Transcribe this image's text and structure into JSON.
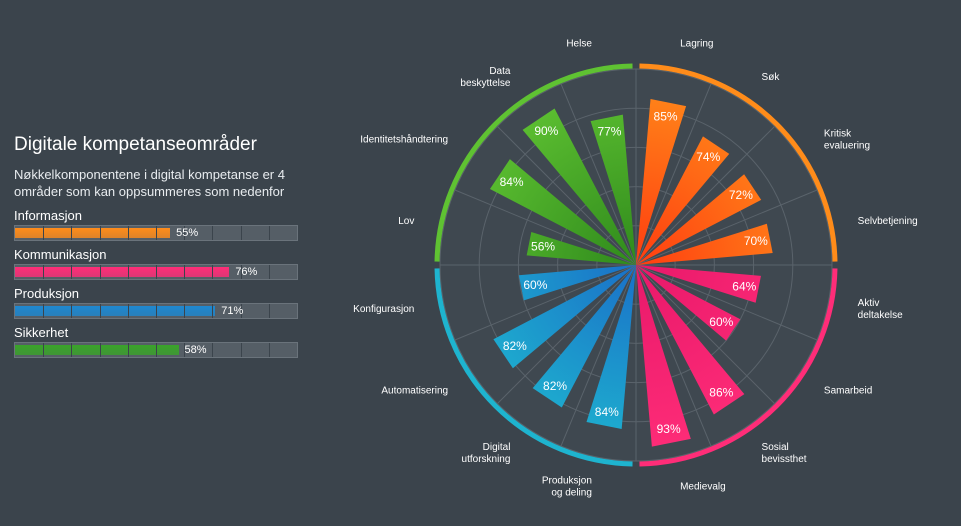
{
  "panel": {
    "title": "Digitale kompetanseområder",
    "subtitle": "Nøkkelkomponentene i digital kompetanse er 4 områder som kan oppsummeres som nedenfor",
    "categories": [
      {
        "label": "Informasjon",
        "percent_label": "55%",
        "value": 55,
        "color": "#ff8c1a"
      },
      {
        "label": "Kommunikasjon",
        "percent_label": "76%",
        "value": 76,
        "color": "#ff2d78"
      },
      {
        "label": "Produksjon",
        "percent_label": "71%",
        "value": 71,
        "color": "#1e88d0"
      },
      {
        "label": "Sikkerhet",
        "percent_label": "58%",
        "value": 58,
        "color": "#3aa32a"
      }
    ]
  },
  "chart_data": {
    "type": "polar-bar",
    "categories": [
      "Lagring",
      "Søk",
      "Kritisk evaluering",
      "Selvbetjening",
      "Aktiv deltakelse",
      "Samarbeid",
      "Sosial bevissthet",
      "Medievalg",
      "Produksjon og deling",
      "Digital utforskning",
      "Automatisering",
      "Konfigurasjon",
      "Lov",
      "Identitetshåndtering",
      "Data beskyttelse",
      "Helse"
    ],
    "values": [
      85,
      74,
      72,
      70,
      64,
      60,
      86,
      93,
      84,
      82,
      82,
      60,
      56,
      84,
      90,
      77
    ],
    "value_labels": [
      "85%",
      "74%",
      "72%",
      "70%",
      "64%",
      "60%",
      "86%",
      "93%",
      "84%",
      "82%",
      "82%",
      "60%",
      "56%",
      "84%",
      "90%",
      "77%"
    ],
    "groups": [
      {
        "name": "Informasjon",
        "color": "#ff8c1a",
        "members": [
          0,
          1,
          2,
          3
        ]
      },
      {
        "name": "Kommunikasjon",
        "color": "#ff2d78",
        "members": [
          4,
          5,
          6,
          7
        ]
      },
      {
        "name": "Produksjon",
        "color": "#1eb4cf",
        "members": [
          8,
          9,
          10,
          11
        ]
      },
      {
        "name": "Sikkerhet",
        "color": "#5fc232",
        "members": [
          12,
          13,
          14,
          15
        ]
      }
    ],
    "rlim": [
      0,
      100
    ],
    "grid": true
  }
}
